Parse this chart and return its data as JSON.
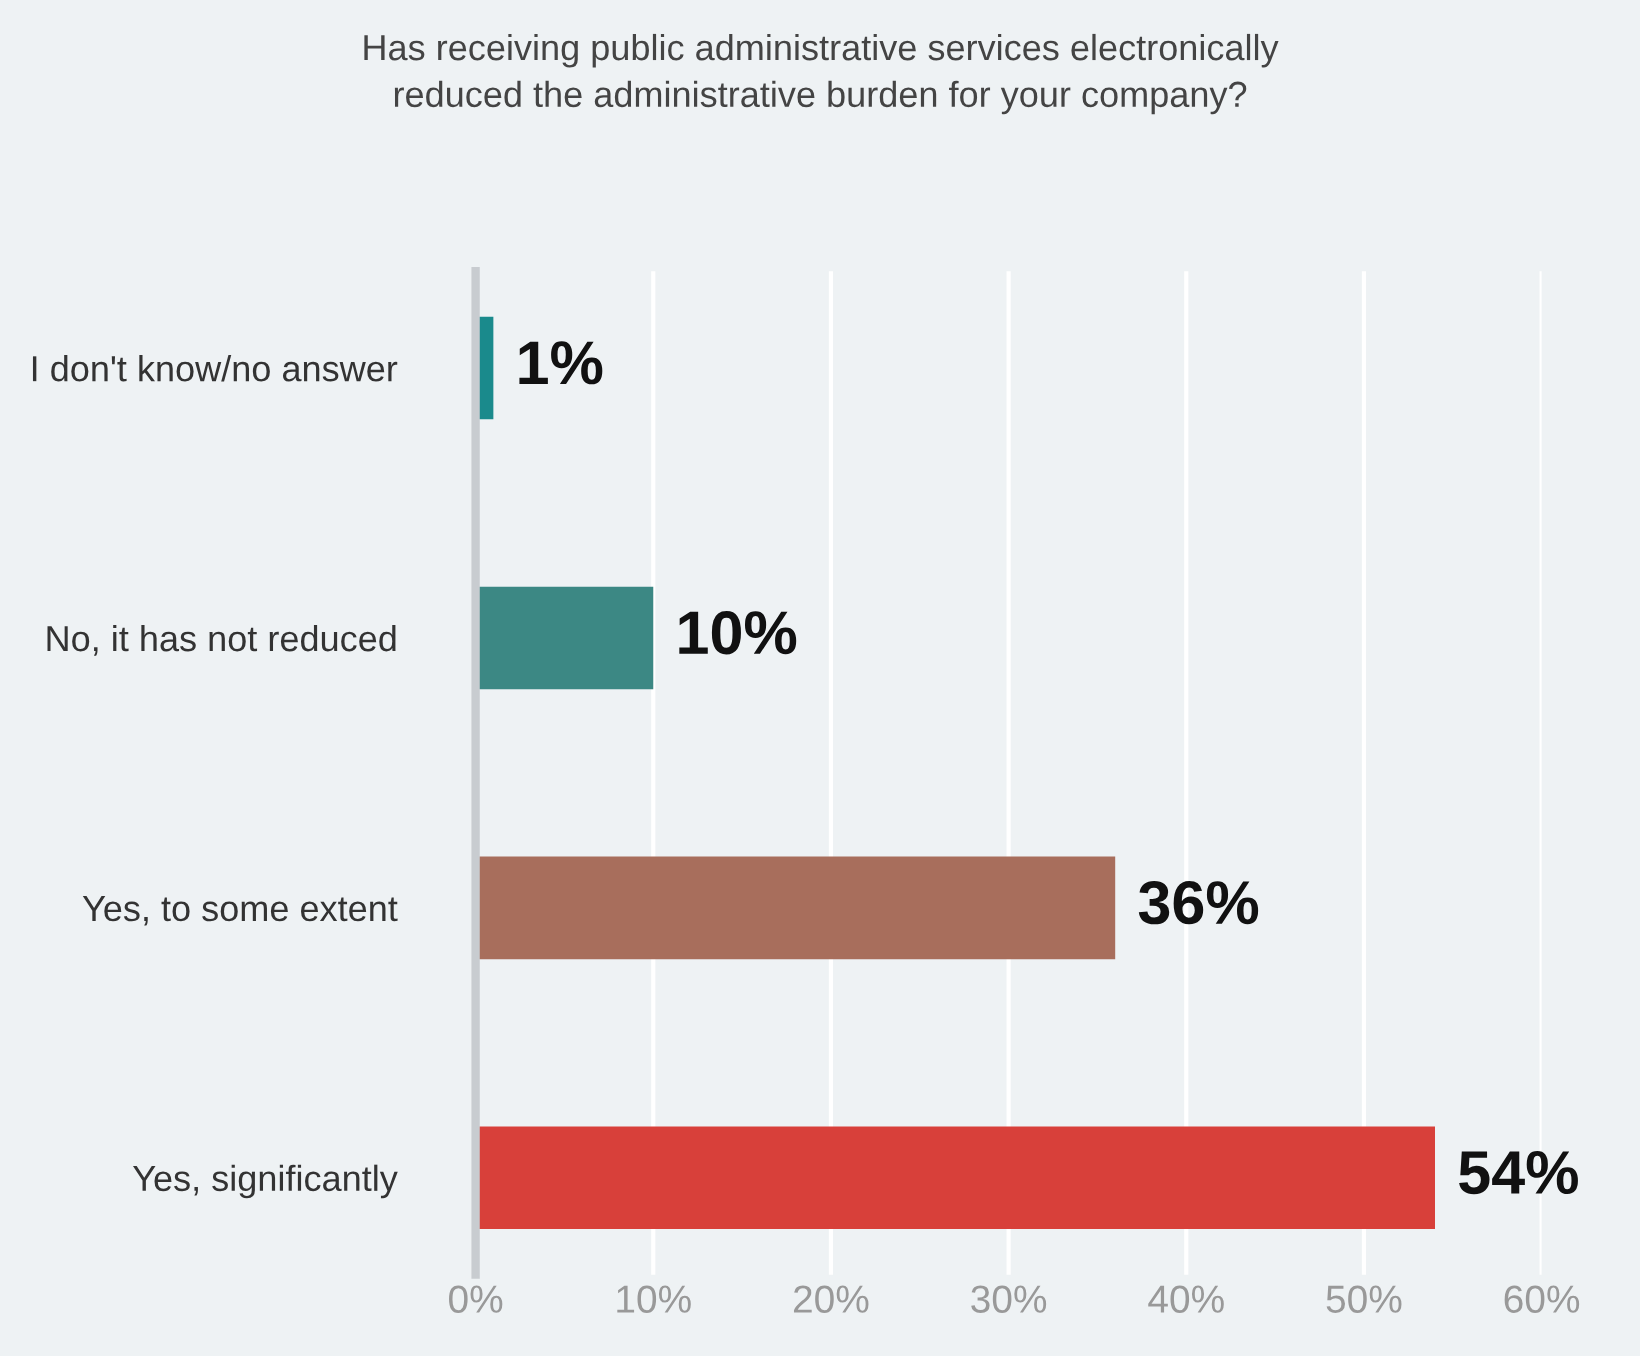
{
  "chart_data": {
    "type": "bar",
    "orientation": "horizontal",
    "title": "Has receiving public administrative services electronically\nreduced the administrative burden for your company?",
    "categories": [
      "I don't know/no answer",
      "No, it has not reduced",
      "Yes, to some extent",
      "Yes, significantly"
    ],
    "values": [
      1,
      10,
      36,
      54
    ],
    "colors": [
      "#1a8a8c",
      "#3c8884",
      "#a86e5c",
      "#d8403a"
    ],
    "value_labels": [
      "1%",
      "10%",
      "36%",
      "54%"
    ],
    "xlim": [
      0,
      60
    ],
    "xticks": [
      {
        "value": 0,
        "label": "0%"
      },
      {
        "value": 10,
        "label": "10%"
      },
      {
        "value": 20,
        "label": "20%"
      },
      {
        "value": 30,
        "label": "30%"
      },
      {
        "value": 40,
        "label": "40%"
      },
      {
        "value": 50,
        "label": "50%"
      },
      {
        "value": 60,
        "label": "60%"
      }
    ],
    "grid": "x"
  }
}
